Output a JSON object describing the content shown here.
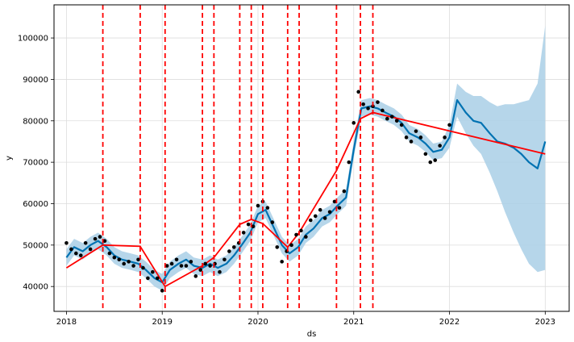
{
  "chart_data": {
    "type": "line",
    "title": "",
    "xlabel": "ds",
    "ylabel": "y",
    "xlim": [
      2017.87,
      2023.25
    ],
    "ylim": [
      34000,
      108000
    ],
    "grid": true,
    "x_ticks": [
      {
        "value": 2018,
        "label": "2018"
      },
      {
        "value": 2019,
        "label": "2019"
      },
      {
        "value": 2020,
        "label": "2020"
      },
      {
        "value": 2021,
        "label": "2021"
      },
      {
        "value": 2022,
        "label": "2022"
      },
      {
        "value": 2023,
        "label": "2023"
      }
    ],
    "y_ticks": [
      {
        "value": 40000,
        "label": "40000"
      },
      {
        "value": 50000,
        "label": "50000"
      },
      {
        "value": 60000,
        "label": "60000"
      },
      {
        "value": 70000,
        "label": "70000"
      },
      {
        "value": 80000,
        "label": "80000"
      },
      {
        "value": 90000,
        "label": "90000"
      },
      {
        "value": 100000,
        "label": "100000"
      }
    ],
    "colors": {
      "observed": "#000000",
      "forecast": "#0072B2",
      "interval": "#a9cfe6",
      "trend": "#ff0000",
      "changepoints": "#ff0000"
    },
    "changepoints": [
      2018.38,
      2018.77,
      2019.03,
      2019.42,
      2019.54,
      2019.81,
      2019.93,
      2020.05,
      2020.31,
      2020.43,
      2020.82,
      2021.07,
      2021.2
    ],
    "trend": {
      "x": [
        2018.0,
        2018.38,
        2018.77,
        2019.03,
        2019.42,
        2019.54,
        2019.81,
        2019.93,
        2020.05,
        2020.31,
        2020.43,
        2020.82,
        2021.07,
        2021.2,
        2023.0
      ],
      "y": [
        44500,
        50000,
        49700,
        40000,
        45000,
        47000,
        55000,
        56200,
        55200,
        49500,
        53000,
        68000,
        80500,
        82000,
        72000
      ]
    },
    "observed": {
      "x": [
        2018.0,
        2018.05,
        2018.1,
        2018.15,
        2018.2,
        2018.25,
        2018.3,
        2018.35,
        2018.4,
        2018.45,
        2018.5,
        2018.55,
        2018.6,
        2018.65,
        2018.7,
        2018.75,
        2018.8,
        2018.85,
        2018.9,
        2018.95,
        2019.0,
        2019.05,
        2019.1,
        2019.15,
        2019.2,
        2019.25,
        2019.3,
        2019.35,
        2019.4,
        2019.45,
        2019.5,
        2019.55,
        2019.6,
        2019.65,
        2019.7,
        2019.75,
        2019.8,
        2019.85,
        2019.9,
        2019.95,
        2020.0,
        2020.05,
        2020.1,
        2020.15,
        2020.2,
        2020.25,
        2020.3,
        2020.35,
        2020.4,
        2020.45,
        2020.5,
        2020.55,
        2020.6,
        2020.65,
        2020.7,
        2020.75,
        2020.8,
        2020.85,
        2020.9,
        2020.95,
        2021.0,
        2021.05,
        2021.1,
        2021.15,
        2021.2,
        2021.25,
        2021.3,
        2021.35,
        2021.4,
        2021.45,
        2021.5,
        2021.55,
        2021.6,
        2021.65,
        2021.7,
        2021.75,
        2021.8,
        2021.85,
        2021.9,
        2021.95,
        2022.0
      ],
      "y": [
        50500,
        49000,
        48000,
        47500,
        50500,
        49000,
        51500,
        52000,
        51000,
        48000,
        47000,
        46500,
        45500,
        46000,
        45000,
        46500,
        44500,
        42000,
        43500,
        42000,
        39000,
        45000,
        45500,
        46500,
        45000,
        45000,
        46000,
        42500,
        44000,
        45500,
        45000,
        45500,
        43500,
        46500,
        48500,
        49500,
        50500,
        53000,
        55000,
        54500,
        59500,
        60500,
        59000,
        55500,
        49500,
        46000,
        48500,
        50000,
        52500,
        53500,
        52000,
        56000,
        57000,
        58500,
        56500,
        58000,
        60500,
        59000,
        63000,
        70000,
        79500,
        87000,
        84000,
        83000,
        83500,
        84500,
        82500,
        80500,
        81000,
        80000,
        79000,
        76000,
        75000,
        77500,
        76000,
        72000,
        70000,
        70500,
        74000,
        76000,
        79000
      ]
    },
    "forecast": {
      "x": [
        2018.0,
        2018.08,
        2018.17,
        2018.25,
        2018.33,
        2018.42,
        2018.5,
        2018.58,
        2018.67,
        2018.75,
        2018.83,
        2018.92,
        2019.0,
        2019.08,
        2019.17,
        2019.25,
        2019.33,
        2019.42,
        2019.5,
        2019.58,
        2019.67,
        2019.75,
        2019.83,
        2019.92,
        2020.0,
        2020.08,
        2020.17,
        2020.25,
        2020.33,
        2020.42,
        2020.5,
        2020.58,
        2020.67,
        2020.75,
        2020.83,
        2020.92,
        2021.0,
        2021.08,
        2021.17,
        2021.25,
        2021.33,
        2021.42,
        2021.5,
        2021.58,
        2021.67,
        2021.75,
        2021.83,
        2021.92,
        2022.0,
        2022.08,
        2022.17,
        2022.25,
        2022.33,
        2022.42,
        2022.5,
        2022.58,
        2022.67,
        2022.75,
        2022.83,
        2022.92,
        2023.0
      ],
      "y": [
        47000,
        49500,
        48500,
        50000,
        51000,
        49500,
        47500,
        46500,
        46000,
        45500,
        44000,
        42000,
        41000,
        44000,
        45500,
        46500,
        45000,
        44500,
        45500,
        44500,
        45500,
        47500,
        50000,
        53000,
        57500,
        58500,
        54000,
        50000,
        48000,
        49500,
        52500,
        54000,
        56500,
        57500,
        59500,
        61500,
        73000,
        83000,
        83500,
        83000,
        82000,
        81000,
        79500,
        77000,
        76000,
        74500,
        72500,
        73000,
        76000,
        85000,
        82000,
        80000,
        79500,
        77000,
        75000,
        74500,
        73500,
        72000,
        70000,
        68500,
        75000
      ]
    },
    "interval_upper": [
      49000,
      51500,
      50500,
      52000,
      53000,
      51500,
      49500,
      48500,
      48000,
      47500,
      46000,
      44000,
      43000,
      46000,
      47500,
      48500,
      47000,
      46500,
      47500,
      46500,
      47500,
      49500,
      52000,
      55000,
      59500,
      60500,
      56000,
      52000,
      50000,
      51500,
      54500,
      56000,
      58500,
      59500,
      61500,
      63500,
      75000,
      85000,
      85500,
      85000,
      84000,
      83000,
      81500,
      79000,
      78000,
      76500,
      74500,
      75000,
      79000,
      89000,
      87000,
      86000,
      86000,
      84500,
      83500,
      84000,
      84000,
      84500,
      85000,
      89000,
      103000
    ],
    "interval_lower": [
      45000,
      47500,
      46500,
      48000,
      49000,
      47500,
      45500,
      44500,
      44000,
      43500,
      42000,
      40000,
      39000,
      42000,
      43500,
      44500,
      43000,
      42500,
      43500,
      42500,
      43500,
      45500,
      48000,
      51000,
      55500,
      56500,
      52000,
      48000,
      46000,
      47500,
      50500,
      52000,
      54500,
      55500,
      57500,
      59500,
      71000,
      81000,
      81500,
      81000,
      80000,
      79000,
      77500,
      75000,
      74000,
      72500,
      70500,
      71000,
      73500,
      81000,
      77000,
      74000,
      72000,
      67500,
      63000,
      58000,
      53000,
      49000,
      45500,
      43500,
      44000
    ]
  }
}
